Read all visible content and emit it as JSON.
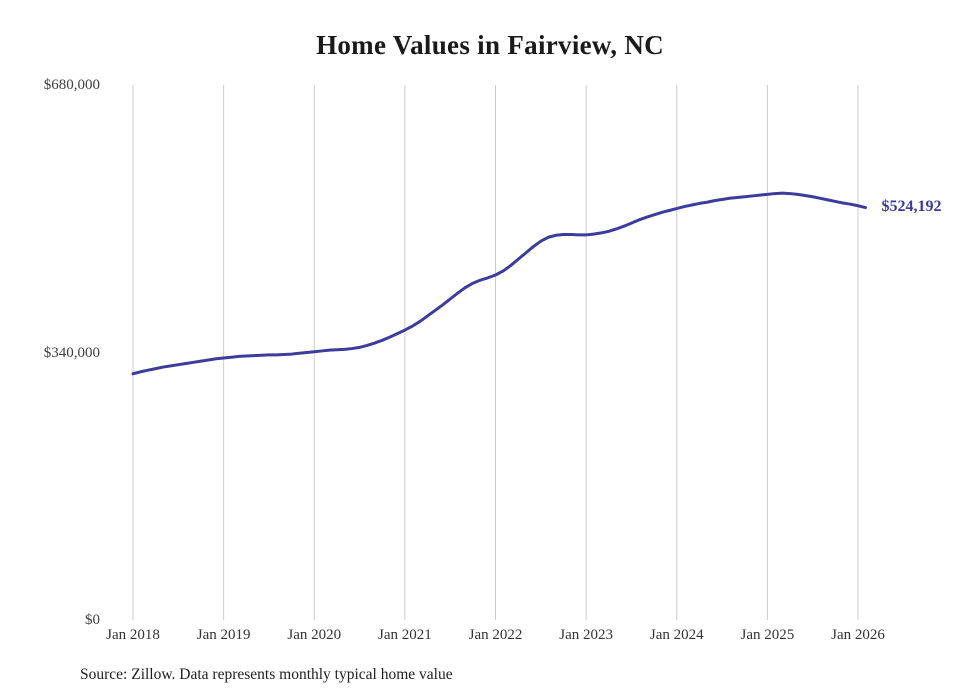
{
  "title": "Home Values in Fairview, NC",
  "source_note": "Source: Zillow. Data represents monthly typical home value",
  "chart_data": {
    "type": "line",
    "title": "Home Values in Fairview, NC",
    "xlabel": "",
    "ylabel": "",
    "start_month": "2018-01",
    "frequency": "monthly",
    "values": [
      313000,
      315500,
      317500,
      319500,
      321500,
      323000,
      324500,
      326000,
      327500,
      329000,
      330500,
      332000,
      333000,
      334000,
      335000,
      335500,
      336000,
      336500,
      337000,
      337000,
      337500,
      338000,
      339000,
      340000,
      341000,
      342000,
      343000,
      343500,
      344000,
      345000,
      346500,
      349000,
      352000,
      355500,
      359500,
      364000,
      368500,
      373500,
      379500,
      386500,
      393500,
      400500,
      408000,
      415500,
      422500,
      428000,
      432000,
      435000,
      438500,
      443500,
      450500,
      458500,
      466500,
      474500,
      481500,
      486500,
      489000,
      490000,
      490000,
      489500,
      489500,
      490500,
      492000,
      494000,
      497000,
      500500,
      504500,
      508500,
      512000,
      515000,
      518000,
      520500,
      523000,
      525500,
      527500,
      529500,
      531000,
      533000,
      534500,
      536000,
      537000,
      538000,
      539000,
      540000,
      541000,
      542000,
      542500,
      542000,
      541000,
      539500,
      538000,
      536000,
      534000,
      532000,
      530000,
      528500,
      526500,
      524192
    ],
    "x_ticks": [
      "Jan 2018",
      "Jan 2019",
      "Jan 2020",
      "Jan 2021",
      "Jan 2022",
      "Jan 2023",
      "Jan 2024",
      "Jan 2025",
      "Jan 2026"
    ],
    "y_ticks": [
      {
        "label": "$0",
        "value": 0
      },
      {
        "label": "$340,000",
        "value": 340000
      },
      {
        "label": "$680,000",
        "value": 680000
      }
    ],
    "ylim": [
      0,
      680000
    ],
    "grid": "vertical-only",
    "legend_position": "none",
    "end_label": "$524,192",
    "line_color": "#3c3c9e",
    "end_label_color": "#3a3a9c",
    "grid_color": "#cccccc"
  }
}
